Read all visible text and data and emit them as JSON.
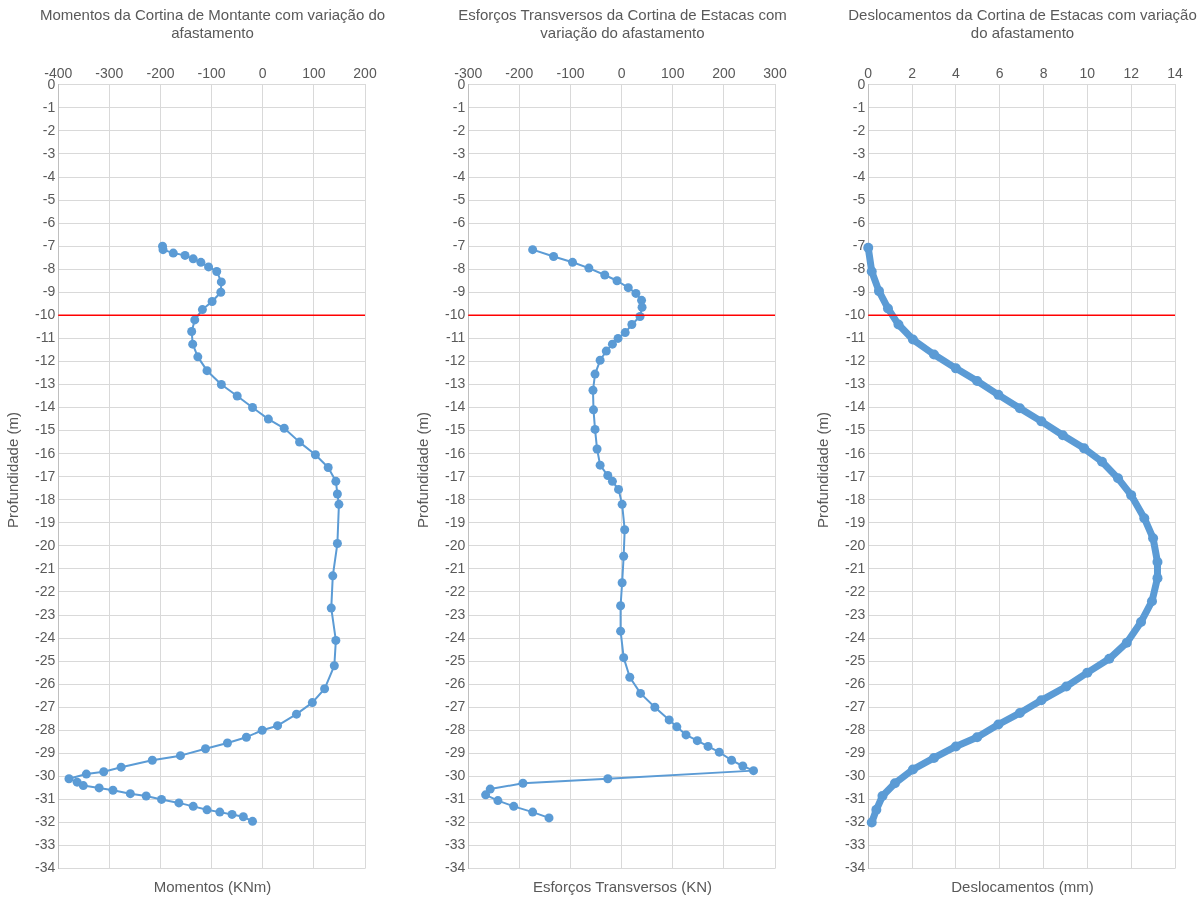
{
  "chart_data": [
    {
      "type": "line",
      "title": "Momentos da Cortina de Montante com variação  do afastamento",
      "xlabel": "Momentos (KNm)",
      "ylabel": "Profundidade  (m)",
      "marker": "circle",
      "grid": true,
      "xlim": [
        -400,
        200
      ],
      "xticks": [
        -400,
        -300,
        -200,
        -100,
        0,
        100,
        200
      ],
      "ylim": [
        -34,
        0
      ],
      "yticks": [
        0,
        -1,
        -2,
        -3,
        -4,
        -5,
        -6,
        -7,
        -8,
        -9,
        -10,
        -11,
        -12,
        -13,
        -14,
        -15,
        -16,
        -17,
        -18,
        -19,
        -20,
        -21,
        -22,
        -23,
        -24,
        -25,
        -26,
        -27,
        -28,
        -29,
        -30,
        -31,
        -32,
        -33,
        -34
      ],
      "ref_lines": [
        {
          "axis": "y",
          "value": -10,
          "color": "#ff0000"
        }
      ],
      "series": [
        {
          "color": "#5b9bd5",
          "x": [
            -196,
            -195,
            -175,
            -152,
            -136,
            -121,
            -106,
            -90,
            -81,
            -82,
            -99,
            -118,
            -133,
            -139,
            -137,
            -127,
            -109,
            -81,
            -50,
            -20,
            11,
            42,
            72,
            103,
            128,
            143,
            146,
            149,
            146,
            137,
            134,
            143,
            140,
            121,
            97,
            66,
            29,
            -1,
            -32,
            -69,
            -112,
            -161,
            -216,
            -277,
            -311,
            -345,
            -379,
            -363,
            -351,
            -320,
            -293,
            -259,
            -228,
            -198,
            -164,
            -136,
            -109,
            -84,
            -60,
            -38,
            -20
          ],
          "values": [
            -7.0,
            -7.15,
            -7.3,
            -7.4,
            -7.55,
            -7.7,
            -7.9,
            -8.1,
            -8.55,
            -9.0,
            -9.4,
            -9.75,
            -10.2,
            -10.7,
            -11.25,
            -11.8,
            -12.4,
            -13.0,
            -13.5,
            -14.0,
            -14.5,
            -14.9,
            -15.5,
            -16.05,
            -16.6,
            -17.2,
            -17.75,
            -18.2,
            -19.9,
            -21.3,
            -22.7,
            -24.1,
            -25.2,
            -26.2,
            -26.8,
            -27.3,
            -27.8,
            -28.0,
            -28.3,
            -28.55,
            -28.8,
            -29.1,
            -29.3,
            -29.6,
            -29.8,
            -29.9,
            -30.1,
            -30.25,
            -30.4,
            -30.5,
            -30.6,
            -30.75,
            -30.85,
            -31.0,
            -31.15,
            -31.3,
            -31.45,
            -31.55,
            -31.65,
            -31.75,
            -31.95
          ]
        }
      ]
    },
    {
      "type": "line",
      "title": "Esforços Transversos  da Cortina de Estacas com variação  do afastamento",
      "xlabel": "Esforços Transversos  (KN)",
      "ylabel": "Profundidade  (m)",
      "marker": "circle",
      "grid": true,
      "xlim": [
        -300,
        300
      ],
      "xticks": [
        -300,
        -200,
        -100,
        0,
        100,
        200,
        300
      ],
      "ylim": [
        -34,
        0
      ],
      "yticks": [
        0,
        -1,
        -2,
        -3,
        -4,
        -5,
        -6,
        -7,
        -8,
        -9,
        -10,
        -11,
        -12,
        -13,
        -14,
        -15,
        -16,
        -17,
        -18,
        -19,
        -20,
        -21,
        -22,
        -23,
        -24,
        -25,
        -26,
        -27,
        -28,
        -29,
        -30,
        -31,
        -32,
        -33,
        -34
      ],
      "ref_lines": [
        {
          "axis": "y",
          "value": -10,
          "color": "#ff0000"
        }
      ],
      "series": [
        {
          "color": "#5b9bd5",
          "x": [
            -174,
            -133,
            -96,
            -64,
            -33,
            -9,
            13,
            28,
            39,
            40,
            36,
            20,
            7,
            -7,
            -18,
            -30,
            -42,
            -52,
            -56,
            -55,
            -52,
            -48,
            -42,
            -27,
            -18,
            -6,
            1,
            6,
            4,
            1,
            -2,
            -2,
            4,
            16,
            37,
            65,
            93,
            108,
            126,
            148,
            169,
            191,
            215,
            237,
            258,
            -27,
            -193,
            -257,
            -266,
            -242,
            -211,
            -174,
            -142
          ],
          "values": [
            -7.15,
            -7.45,
            -7.7,
            -7.95,
            -8.25,
            -8.5,
            -8.8,
            -9.05,
            -9.35,
            -9.65,
            -10.05,
            -10.4,
            -10.75,
            -11.0,
            -11.25,
            -11.55,
            -11.95,
            -12.55,
            -13.25,
            -14.1,
            -14.95,
            -15.8,
            -16.5,
            -16.95,
            -17.2,
            -17.55,
            -18.2,
            -19.3,
            -20.45,
            -21.6,
            -22.6,
            -23.7,
            -24.85,
            -25.7,
            -26.4,
            -27.0,
            -27.55,
            -27.85,
            -28.2,
            -28.45,
            -28.7,
            -28.95,
            -29.3,
            -29.55,
            -29.75,
            -30.1,
            -30.3,
            -30.55,
            -30.8,
            -31.05,
            -31.3,
            -31.55,
            -31.8
          ]
        }
      ]
    },
    {
      "type": "line",
      "title": "Deslocamentos da Cortina de Estacas com variação  do afastamento",
      "xlabel": "Deslocamentos  (mm)",
      "ylabel": "Profundidade  (m)",
      "marker": "circle",
      "grid": true,
      "xlim": [
        0,
        14
      ],
      "xticks": [
        0,
        2,
        4,
        6,
        8,
        10,
        12,
        14
      ],
      "ylim": [
        -34,
        0
      ],
      "yticks": [
        0,
        -1,
        -2,
        -3,
        -4,
        -5,
        -6,
        -7,
        -8,
        -9,
        -10,
        -11,
        -12,
        -13,
        -14,
        -15,
        -16,
        -17,
        -18,
        -19,
        -20,
        -21,
        -22,
        -23,
        -24,
        -25,
        -26,
        -27,
        -28,
        -29,
        -30,
        -31,
        -32,
        -33,
        -34
      ],
      "ref_lines": [
        {
          "axis": "y",
          "value": -10,
          "color": "#ff0000"
        }
      ],
      "series": [
        {
          "color": "#5b9bd5",
          "x": [
            0,
            0.16,
            0.49,
            0.9,
            1.38,
            2.04,
            3.0,
            4.0,
            4.97,
            5.94,
            6.92,
            7.9,
            8.88,
            9.85,
            10.67,
            11.4,
            12.0,
            12.6,
            13.0,
            13.2,
            13.2,
            12.95,
            12.45,
            11.8,
            11.0,
            10.0,
            9.04,
            7.9,
            6.92,
            5.94,
            4.97,
            4.0,
            3.0,
            2.04,
            1.22,
            0.65,
            0.37,
            0.16
          ],
          "values": [
            -7.07,
            -8.1,
            -8.95,
            -9.7,
            -10.4,
            -11.05,
            -11.7,
            -12.3,
            -12.85,
            -13.45,
            -14.03,
            -14.6,
            -15.2,
            -15.77,
            -16.35,
            -17.07,
            -17.8,
            -18.8,
            -19.67,
            -20.7,
            -21.4,
            -22.4,
            -23.3,
            -24.2,
            -24.9,
            -25.5,
            -26.1,
            -26.7,
            -27.25,
            -27.75,
            -28.3,
            -28.7,
            -29.2,
            -29.7,
            -30.3,
            -30.85,
            -31.45,
            -32.0
          ]
        }
      ]
    }
  ]
}
